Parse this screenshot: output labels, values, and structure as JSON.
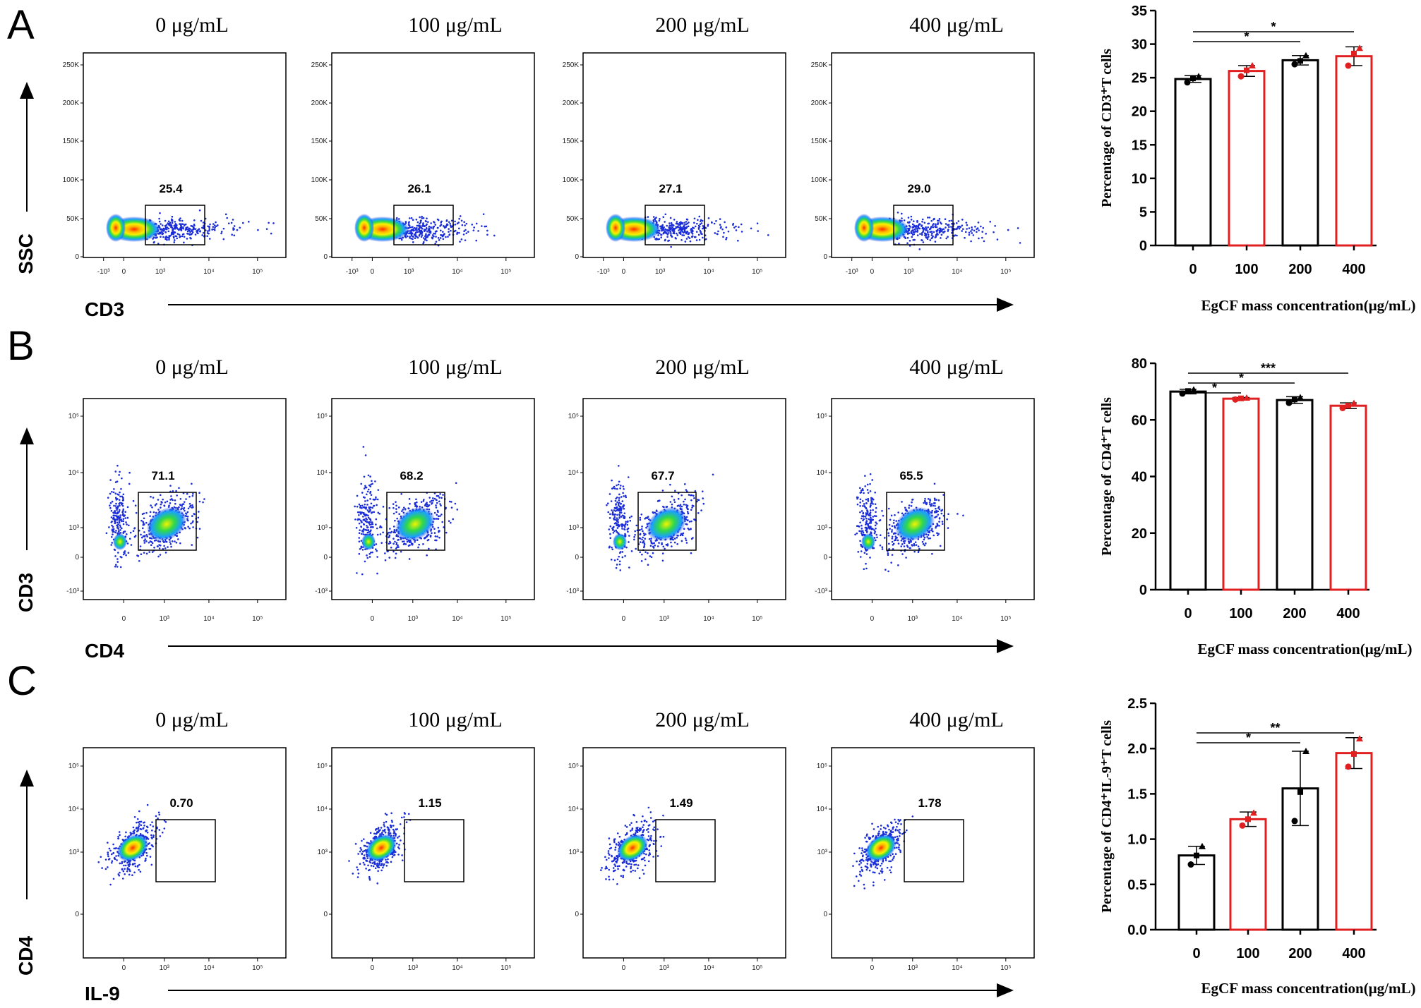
{
  "figure": {
    "rows": [
      {
        "id": "A",
        "label": "A",
        "concentrations": [
          "0 μg/mL",
          "100 μg/mL",
          "200 μg/mL",
          "400 μg/mL"
        ],
        "gate_values": [
          "25.4",
          "26.1",
          "27.1",
          "29.0"
        ],
        "y_channel": "SSC",
        "x_channel": "CD3",
        "y_ticks": [
          "250K",
          "200K",
          "150K",
          "100K",
          "50K",
          "0"
        ],
        "x_ticks": [
          "-10³",
          "0",
          "10³",
          "10⁴",
          "10⁵"
        ]
      },
      {
        "id": "B",
        "label": "B",
        "concentrations": [
          "0 μg/mL",
          "100 μg/mL",
          "200 μg/mL",
          "400 μg/mL"
        ],
        "gate_values": [
          "71.1",
          "68.2",
          "67.7",
          "65.5"
        ],
        "y_channel": "CD3",
        "x_channel": "CD4",
        "y_ticks": [
          "10⁵",
          "10⁴",
          "10³",
          "0",
          "-10³"
        ],
        "x_ticks": [
          "0",
          "10³",
          "10⁴",
          "10⁵"
        ]
      },
      {
        "id": "C",
        "label": "C",
        "concentrations": [
          "0 μg/mL",
          "100 μg/mL",
          "200 μg/mL",
          "400 μg/mL"
        ],
        "gate_values": [
          "0.70",
          "1.15",
          "1.49",
          "1.78"
        ],
        "y_channel": "CD4",
        "x_channel": "IL-9",
        "y_ticks": [
          "10⁵",
          "10⁴",
          "10³",
          "0"
        ],
        "x_ticks": [
          "0",
          "10³",
          "10⁴",
          "10⁵"
        ]
      }
    ]
  },
  "chart_data": [
    {
      "type": "bar",
      "title": "",
      "categories": [
        "0",
        "100",
        "200",
        "400"
      ],
      "values": [
        24.8,
        26.0,
        27.6,
        28.2
      ],
      "errors": [
        0.5,
        0.8,
        0.7,
        1.4
      ],
      "points": [
        [
          24.3,
          24.9,
          25.2
        ],
        [
          25.2,
          26.1,
          26.8
        ],
        [
          27.0,
          27.5,
          28.3
        ],
        [
          26.8,
          28.6,
          29.4
        ]
      ],
      "bar_colors": [
        "#000000",
        "#e02020",
        "#000000",
        "#e02020"
      ],
      "ylabel": "Percentage of CD3⁺T cells",
      "xlabel": "EgCF mass concentration(μg/mL)",
      "ylim": [
        0,
        35
      ],
      "yticks": [
        "0",
        "5",
        "10",
        "15",
        "20",
        "25",
        "30",
        "35"
      ],
      "significance": [
        {
          "from": "0",
          "to": "200",
          "label": "*"
        },
        {
          "from": "0",
          "to": "400",
          "label": "*"
        }
      ]
    },
    {
      "type": "bar",
      "title": "",
      "categories": [
        "0",
        "100",
        "200",
        "400"
      ],
      "values": [
        70.0,
        67.5,
        67.0,
        65.0
      ],
      "errors": [
        0.8,
        0.4,
        1.2,
        1.0
      ],
      "points": [
        [
          69.3,
          70.2,
          70.7
        ],
        [
          67.2,
          67.6,
          67.8
        ],
        [
          66.0,
          67.2,
          67.9
        ],
        [
          64.2,
          65.0,
          65.9
        ]
      ],
      "bar_colors": [
        "#000000",
        "#e02020",
        "#000000",
        "#e02020"
      ],
      "ylabel": "Percentage of CD4⁺T cells",
      "xlabel": "EgCF mass concentration(μg/mL)",
      "ylim": [
        0,
        80
      ],
      "yticks": [
        "0",
        "20",
        "40",
        "60",
        "80"
      ],
      "significance": [
        {
          "from": "0",
          "to": "100",
          "label": "*"
        },
        {
          "from": "0",
          "to": "200",
          "label": "*"
        },
        {
          "from": "0",
          "to": "400",
          "label": "***"
        }
      ]
    },
    {
      "type": "bar",
      "title": "",
      "categories": [
        "0",
        "100",
        "200",
        "400"
      ],
      "values": [
        0.82,
        1.22,
        1.56,
        1.95
      ],
      "errors": [
        0.1,
        0.08,
        0.41,
        0.17
      ],
      "points": [
        [
          0.72,
          0.82,
          0.92
        ],
        [
          1.15,
          1.22,
          1.29
        ],
        [
          1.2,
          1.52,
          1.97
        ],
        [
          1.8,
          1.94,
          2.11
        ]
      ],
      "bar_colors": [
        "#000000",
        "#e02020",
        "#000000",
        "#e02020"
      ],
      "ylabel": "Percentage of CD4⁺IL-9⁺T cells",
      "xlabel": "EgCF mass concentration(μg/mL)",
      "ylim": [
        0,
        2.5
      ],
      "yticks": [
        "0.0",
        "0.5",
        "1.0",
        "1.5",
        "2.0",
        "2.5"
      ],
      "significance": [
        {
          "from": "0",
          "to": "200",
          "label": "*"
        },
        {
          "from": "0",
          "to": "400",
          "label": "**"
        }
      ]
    }
  ]
}
